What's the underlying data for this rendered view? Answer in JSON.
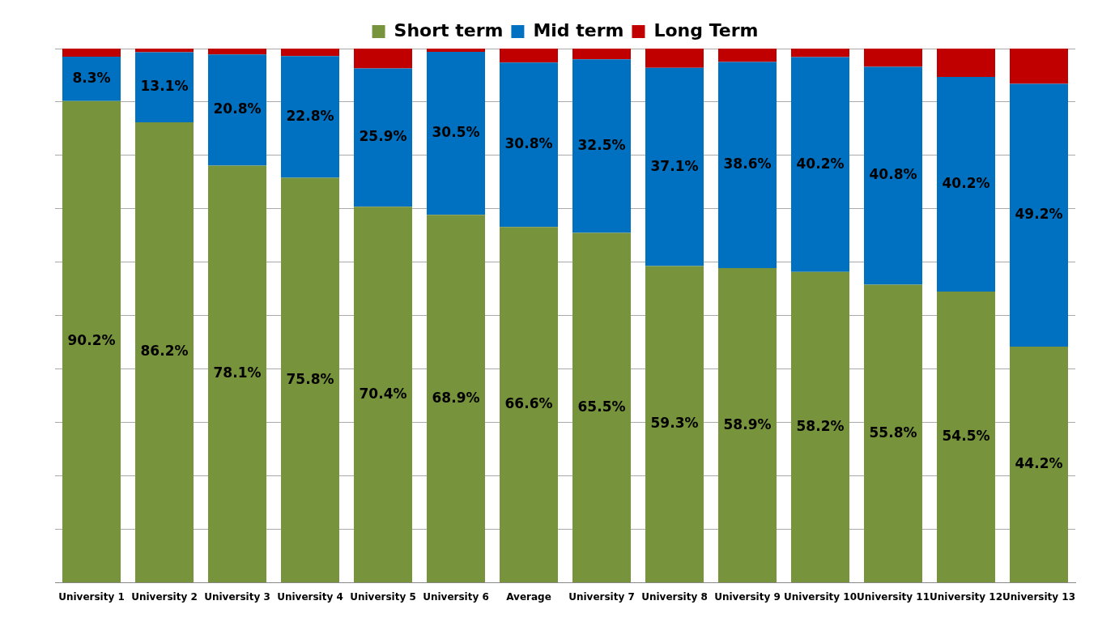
{
  "chart_data": {
    "type": "bar",
    "stacked": true,
    "categories": [
      "University 1",
      "University 2",
      "University 3",
      "University 4",
      "University 5",
      "University 6",
      "Average",
      "University 7",
      "University 8",
      "University 9",
      "University 10",
      "University 11",
      "University 12",
      "University 13"
    ],
    "series": [
      {
        "name": "Short term",
        "color": "#77933c",
        "values": [
          90.2,
          86.2,
          78.1,
          75.8,
          70.4,
          68.9,
          66.6,
          65.5,
          59.3,
          58.9,
          58.2,
          55.8,
          54.5,
          44.2
        ],
        "value_labels": [
          "90.2%",
          "86.2%",
          "78.1%",
          "75.8%",
          "70.4%",
          "68.9%",
          "66.6%",
          "65.5%",
          "59.3%",
          "58.9%",
          "58.2%",
          "55.8%",
          "54.5%",
          "44.2%"
        ]
      },
      {
        "name": "Mid term",
        "color": "#0070c0",
        "values": [
          8.3,
          13.1,
          20.8,
          22.8,
          25.9,
          30.5,
          30.8,
          32.5,
          37.1,
          38.6,
          40.2,
          40.8,
          40.2,
          49.2
        ],
        "value_labels": [
          "8.3%",
          "13.1%",
          "20.8%",
          "22.8%",
          "25.9%",
          "30.5%",
          "30.8%",
          "32.5%",
          "37.1%",
          "38.6%",
          "40.2%",
          "40.8%",
          "40.2%",
          "49.2%"
        ]
      },
      {
        "name": "Long Term",
        "color": "#c00000",
        "values": [
          1.5,
          0.7,
          1.1,
          1.4,
          3.7,
          0.6,
          2.6,
          2.0,
          3.6,
          2.5,
          1.6,
          3.4,
          5.3,
          6.6
        ]
      }
    ],
    "ylim": [
      0,
      100
    ],
    "yticks": [
      {
        "value": 0,
        "label": null
      },
      {
        "value": 10,
        "label": null
      },
      {
        "value": 20,
        "label": null
      },
      {
        "value": 30,
        "label": null
      },
      {
        "value": 40,
        "label": null
      },
      {
        "value": 50,
        "label": null
      },
      {
        "value": 60,
        "label": null
      },
      {
        "value": 70,
        "label": null
      },
      {
        "value": 80,
        "label": null
      },
      {
        "value": 90,
        "label": null
      },
      {
        "value": 100,
        "label": null
      }
    ],
    "tick_labels": "x",
    "grid": "y",
    "legend": "top"
  }
}
